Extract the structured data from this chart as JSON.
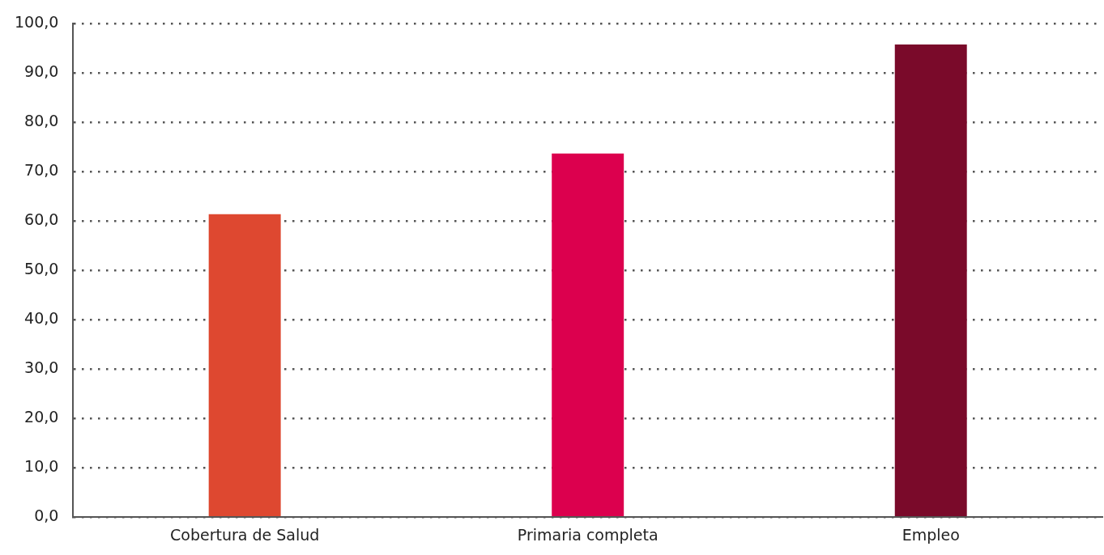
{
  "chart_data": {
    "type": "bar",
    "categories": [
      "Cobertura de Salud",
      "Primaria completa",
      "Empleo"
    ],
    "values": [
      61.4,
      73.7,
      95.8
    ],
    "colors": [
      "#de4830",
      "#dc004e",
      "#7a0a2a"
    ],
    "ylim": [
      0,
      100
    ],
    "yticks": [
      {
        "value": 0,
        "label": "0,0"
      },
      {
        "value": 10,
        "label": "10,0"
      },
      {
        "value": 20,
        "label": "20,0"
      },
      {
        "value": 30,
        "label": "30,0"
      },
      {
        "value": 40,
        "label": "40,0"
      },
      {
        "value": 50,
        "label": "50,0"
      },
      {
        "value": 60,
        "label": "60,0"
      },
      {
        "value": 70,
        "label": "70,0"
      },
      {
        "value": 80,
        "label": "80,0"
      },
      {
        "value": 90,
        "label": "90,0"
      },
      {
        "value": 100,
        "label": "100,0"
      }
    ],
    "grid": "y"
  }
}
